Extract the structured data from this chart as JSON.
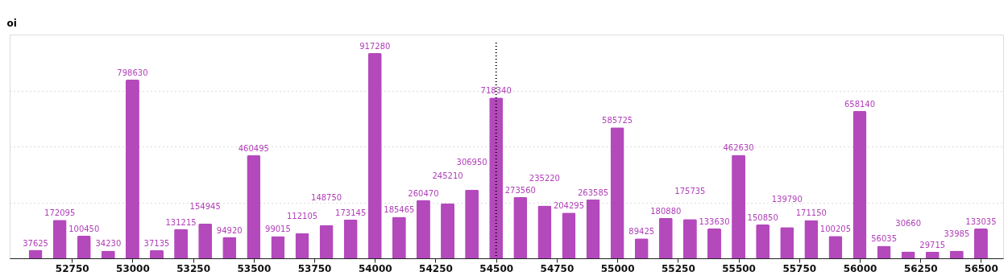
{
  "chart_data": {
    "type": "bar",
    "ylabel": "oi",
    "x": [
      52600,
      52700,
      52800,
      52900,
      53000,
      53100,
      53200,
      53300,
      53400,
      53500,
      53600,
      53700,
      53800,
      53900,
      54000,
      54100,
      54200,
      54300,
      54400,
      54500,
      54600,
      54700,
      54800,
      54900,
      55000,
      55100,
      55200,
      55300,
      55400,
      55500,
      55600,
      55700,
      55800,
      55900,
      56000,
      56100,
      56200,
      56300,
      56400,
      56500
    ],
    "values": [
      37625,
      172095,
      100450,
      34230,
      798630,
      37135,
      131215,
      154945,
      94920,
      460495,
      99015,
      112105,
      148750,
      173145,
      917280,
      185465,
      260470,
      245210,
      306950,
      718340,
      273560,
      235220,
      204295,
      263585,
      585725,
      89425,
      180880,
      175735,
      133630,
      462630,
      150850,
      139790,
      171150,
      100205,
      658140,
      56035,
      30660,
      29715,
      33985,
      133035
    ],
    "color": "#b03fb8",
    "data_labels": true,
    "xlim": [
      52510,
      56575
    ],
    "xticks": [
      52750,
      53000,
      53250,
      53500,
      53750,
      54000,
      54250,
      54500,
      54750,
      55000,
      55250,
      55500,
      55750,
      56000,
      56250,
      56500
    ],
    "ylim": [
      0,
      1000000
    ],
    "yticks": [
      {
        "value": 0,
        "label": null
      },
      {
        "value": 250000,
        "label": null
      },
      {
        "value": 500000,
        "label": null
      },
      {
        "value": 750000,
        "label": null
      }
    ],
    "tick_labels": "x",
    "grid": "y",
    "ref_lines": [
      {
        "axis": "x",
        "value": 54500,
        "color": "#000000",
        "line_style": "dotted"
      }
    ]
  }
}
